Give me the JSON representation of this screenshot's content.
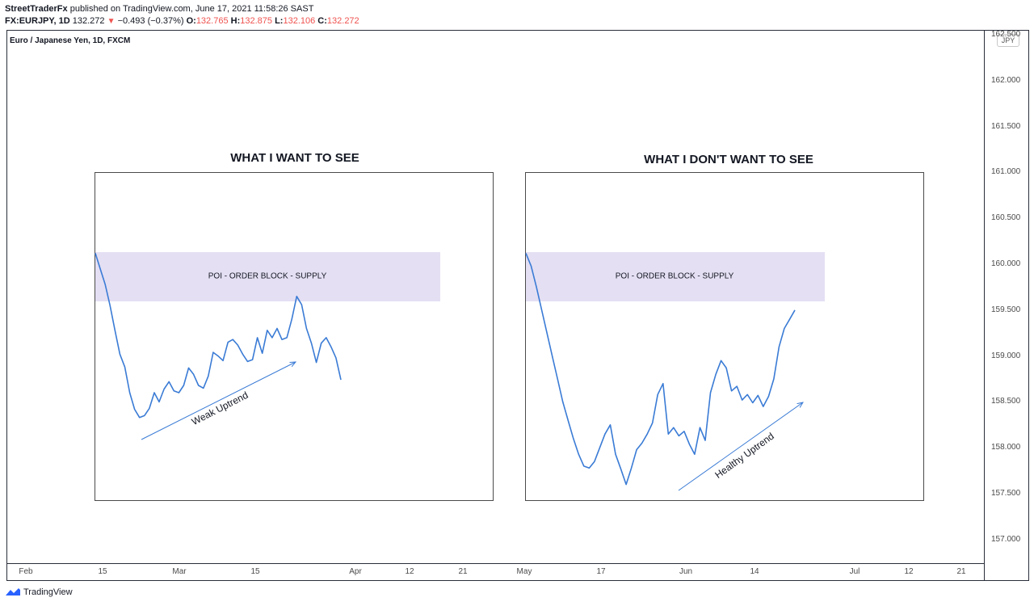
{
  "header": {
    "author": "StreetTraderFx",
    "published": "published on TradingView.com, June 17, 2021 11:58:26 SAST",
    "symbol": "FX:EURJPY, 1D",
    "last": "132.272",
    "change": "−0.493 (−0.37%)",
    "o_label": "O:",
    "o_value": "132.765",
    "h_label": "H:",
    "h_value": "132.875",
    "l_label": "L:",
    "l_value": "132.106",
    "c_label": "C:",
    "c_value": "132.272"
  },
  "chart_title": "Euro / Japanese Yen, 1D, FXCM",
  "currency_badge": "JPY",
  "footer_brand": "TradingView",
  "colors": {
    "line": "#3a7bd5",
    "zone": "#e4dff3",
    "down": "#ef5350"
  },
  "chart_data": {
    "type": "line",
    "price_axis": {
      "ticks": [
        "162.500",
        "162.000",
        "161.500",
        "161.000",
        "160.500",
        "160.000",
        "159.500",
        "159.000",
        "158.500",
        "158.000",
        "157.500",
        "157.000"
      ]
    },
    "time_axis": {
      "ticks": [
        "Feb",
        "15",
        "Mar",
        "15",
        "Apr",
        "12",
        "21",
        "May",
        "17",
        "Jun",
        "14",
        "Jul",
        "12",
        "21"
      ]
    },
    "panels": [
      {
        "title": "WHAT I  WANT TO SEE",
        "zone_label": "POI - ORDER BLOCK - SUPPLY",
        "annotation": "Weak Uptrend",
        "series": [
          [
            160.12,
            159.95,
            159.78,
            159.55,
            159.28,
            159.02,
            158.88,
            158.6,
            158.42,
            158.33,
            158.35,
            158.43,
            158.6,
            158.5,
            158.64,
            158.72,
            158.62,
            158.6,
            158.68,
            158.87,
            158.8,
            158.68,
            158.65,
            158.78,
            159.04,
            159.0,
            158.95,
            159.15,
            159.18,
            159.12,
            159.02,
            158.94,
            158.96,
            159.2,
            159.03,
            159.28,
            159.2,
            159.3,
            159.18,
            159.2,
            159.4,
            159.65,
            159.56,
            159.3,
            159.14,
            158.93,
            159.14,
            159.2,
            159.1,
            158.98,
            158.74
          ]
        ]
      },
      {
        "title": "WHAT I DON'T WANT TO SEE",
        "zone_label": "POI - ORDER BLOCK - SUPPLY",
        "annotation": "Healthy Uptrend",
        "series": [
          [
            160.12,
            159.98,
            159.75,
            159.5,
            159.25,
            159.0,
            158.75,
            158.5,
            158.3,
            158.1,
            157.93,
            157.8,
            157.78,
            157.85,
            158.0,
            158.15,
            158.25,
            157.93,
            157.77,
            157.6,
            157.78,
            157.98,
            158.05,
            158.15,
            158.27,
            158.58,
            158.7,
            158.15,
            158.22,
            158.13,
            158.18,
            158.04,
            157.93,
            158.22,
            158.08,
            158.6,
            158.8,
            158.95,
            158.87,
            158.62,
            158.67,
            158.52,
            158.58,
            158.49,
            158.57,
            158.45,
            158.56,
            158.75,
            159.1,
            159.3,
            159.4,
            159.5
          ]
        ]
      }
    ]
  }
}
